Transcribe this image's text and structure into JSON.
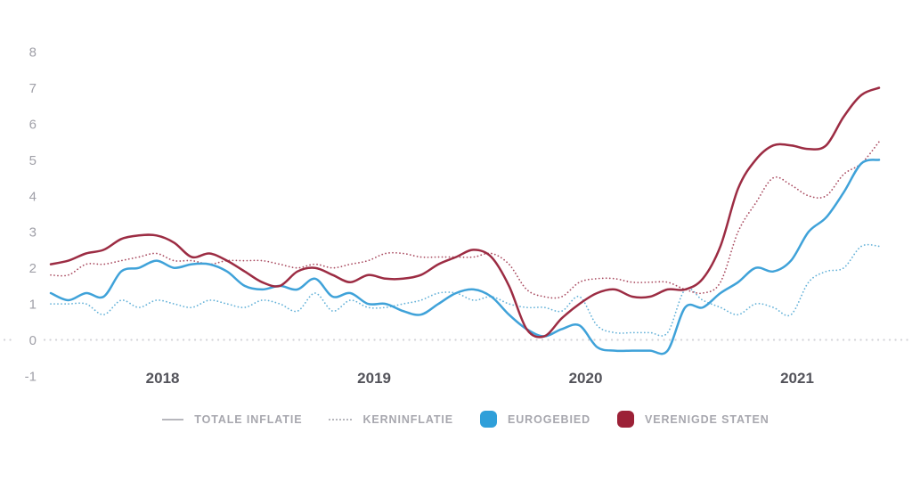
{
  "chart_data": {
    "type": "line",
    "title": "",
    "frequency": "monthly",
    "x_start": "2018-01",
    "x_end": "2021-12",
    "x_tick_labels": [
      "2018",
      "2019",
      "2020",
      "2021"
    ],
    "y_ticks": [
      -1,
      0,
      1,
      2,
      3,
      4,
      5,
      6,
      7,
      8
    ],
    "ylim": [
      -1,
      8.6
    ],
    "grid": "dotted horizontal line at zero only",
    "legend_position": "bottom-center",
    "series": [
      {
        "name": "Eurogebied - kerninflatie",
        "region": "EUROGEBIED",
        "measure": "KERNINFLATIE",
        "style": "dotted",
        "color": "#63b1d8",
        "values": [
          1.0,
          1.0,
          1.0,
          0.7,
          1.1,
          0.9,
          1.1,
          1.0,
          0.9,
          1.1,
          1.0,
          0.9,
          1.1,
          1.0,
          0.8,
          1.3,
          0.8,
          1.1,
          0.9,
          0.9,
          1.0,
          1.1,
          1.3,
          1.3,
          1.1,
          1.2,
          1.0,
          0.9,
          0.9,
          0.8,
          1.2,
          0.4,
          0.2,
          0.2,
          0.2,
          0.2,
          1.4,
          1.1,
          0.9,
          0.7,
          1.0,
          0.9,
          0.7,
          1.6,
          1.9,
          2.0,
          2.6,
          2.6
        ]
      },
      {
        "name": "Verenigde Staten - kerninflatie",
        "region": "VERENIGDE STATEN",
        "measure": "KERNINFLATIE",
        "style": "dotted",
        "color": "#aa4d62",
        "values": [
          1.8,
          1.8,
          2.1,
          2.1,
          2.2,
          2.3,
          2.4,
          2.2,
          2.2,
          2.1,
          2.2,
          2.2,
          2.2,
          2.1,
          2.0,
          2.1,
          2.0,
          2.1,
          2.2,
          2.4,
          2.4,
          2.3,
          2.3,
          2.3,
          2.3,
          2.4,
          2.1,
          1.4,
          1.2,
          1.2,
          1.6,
          1.7,
          1.7,
          1.6,
          1.6,
          1.6,
          1.4,
          1.3,
          1.6,
          3.0,
          3.8,
          4.5,
          4.3,
          4.0,
          4.0,
          4.6,
          4.9,
          5.5
        ]
      },
      {
        "name": "Eurogebied - totale inflatie",
        "region": "EUROGEBIED",
        "measure": "TOTALE INFLATIE",
        "style": "solid",
        "color": "#3fa2d9",
        "values": [
          1.3,
          1.1,
          1.3,
          1.2,
          1.9,
          2.0,
          2.2,
          2.0,
          2.1,
          2.1,
          1.9,
          1.5,
          1.4,
          1.5,
          1.4,
          1.7,
          1.2,
          1.3,
          1.0,
          1.0,
          0.8,
          0.7,
          1.0,
          1.3,
          1.4,
          1.2,
          0.7,
          0.3,
          0.1,
          0.3,
          0.4,
          -0.2,
          -0.3,
          -0.3,
          -0.3,
          -0.3,
          0.9,
          0.9,
          1.3,
          1.6,
          2.0,
          1.9,
          2.2,
          3.0,
          3.4,
          4.1,
          4.9,
          5.0
        ]
      },
      {
        "name": "Verenigde Staten - totale inflatie",
        "region": "VERENIGDE STATEN",
        "measure": "TOTALE INFLATIE",
        "style": "solid",
        "color": "#9c2c43",
        "values": [
          2.1,
          2.2,
          2.4,
          2.5,
          2.8,
          2.9,
          2.9,
          2.7,
          2.3,
          2.4,
          2.2,
          1.9,
          1.6,
          1.5,
          1.9,
          2.0,
          1.8,
          1.6,
          1.8,
          1.7,
          1.7,
          1.8,
          2.1,
          2.3,
          2.5,
          2.3,
          1.5,
          0.3,
          0.1,
          0.6,
          1.0,
          1.3,
          1.4,
          1.2,
          1.2,
          1.4,
          1.4,
          1.7,
          2.6,
          4.2,
          5.0,
          5.4,
          5.4,
          5.3,
          5.4,
          6.2,
          6.8,
          7.0
        ]
      }
    ]
  },
  "legend": {
    "items": [
      {
        "label": "TOTALE INFLATIE",
        "key": "solid-gray-line",
        "color": "#b7b7bd"
      },
      {
        "label": "KERNINFLATIE",
        "key": "dotted-gray-line",
        "color": "#b7b7bd"
      },
      {
        "label": "EUROGEBIED",
        "key": "color-swatch",
        "color": "#2f9fd9"
      },
      {
        "label": "VERENIGDE STATEN",
        "key": "color-swatch",
        "color": "#9c2137"
      }
    ]
  },
  "colors": {
    "background": "#ffffff",
    "zero_line": "#d3d3d8",
    "axis_tick_text": "#a0a0a8",
    "year_text": "#53535a"
  }
}
